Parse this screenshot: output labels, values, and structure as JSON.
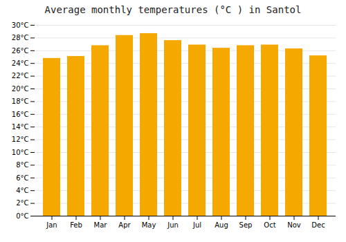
{
  "chart_data": {
    "type": "bar",
    "title": "Average monthly temperatures (°C ) in Santol",
    "categories": [
      "Jan",
      "Feb",
      "Mar",
      "Apr",
      "May",
      "Jun",
      "Jul",
      "Aug",
      "Sep",
      "Oct",
      "Nov",
      "Dec"
    ],
    "values": [
      24.8,
      25.1,
      26.8,
      28.4,
      28.7,
      27.6,
      26.9,
      26.4,
      26.8,
      26.9,
      26.3,
      25.2
    ],
    "color": "#F5A800",
    "ylim": [
      0,
      30
    ],
    "yticks": [
      {
        "value": 0,
        "label": "0°C"
      },
      {
        "value": 2,
        "label": "2°C"
      },
      {
        "value": 4,
        "label": "4°C"
      },
      {
        "value": 6,
        "label": "6°C"
      },
      {
        "value": 8,
        "label": "8°C"
      },
      {
        "value": 10,
        "label": "10°C"
      },
      {
        "value": 12,
        "label": "12°C"
      },
      {
        "value": 14,
        "label": "14°C"
      },
      {
        "value": 16,
        "label": "16°C"
      },
      {
        "value": 18,
        "label": "18°C"
      },
      {
        "value": 20,
        "label": "20°C"
      },
      {
        "value": 22,
        "label": "22°C"
      },
      {
        "value": 24,
        "label": "24°C"
      },
      {
        "value": 26,
        "label": "26°C"
      },
      {
        "value": 28,
        "label": "28°C"
      },
      {
        "value": 30,
        "label": "30°C"
      }
    ],
    "grid": true
  }
}
